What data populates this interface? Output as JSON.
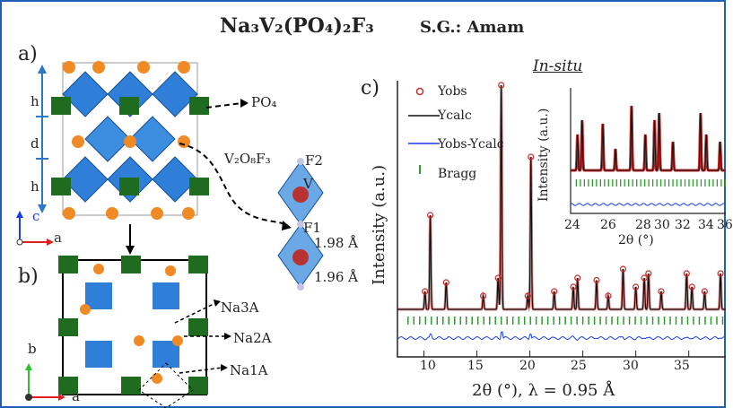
{
  "header": {
    "formula": "Na₃V₂(PO₄)₂F₃",
    "space_group": "S.G.: Amam"
  },
  "panel_a": {
    "label": "a)",
    "layer_labels": [
      "h",
      "d",
      "h"
    ],
    "po4_label": "PO₄",
    "v2o8f3_label": "V₂O₈F₃",
    "f2_label": "F2",
    "v_label": "V",
    "f1_label": "F1",
    "bond1": "1.98 Å",
    "bond2": "1.96 Å",
    "axis_c": "c",
    "axis_a": "a"
  },
  "panel_b": {
    "label": "b)",
    "na3": "Na3A",
    "na2": "Na2A",
    "na1": "Na1A",
    "axis_b": "b",
    "axis_a": "a"
  },
  "panel_c": {
    "label": "c)",
    "insitu": "In-situ",
    "legend": {
      "obs": "Yobs",
      "calc": "Ycalc",
      "diff": "Yobs-Ycalc",
      "bragg": "Bragg"
    },
    "ylabel": "Intensity (a.u.)",
    "xlabel": "2θ (°), λ = 0.95 Å",
    "xticks": [
      "10",
      "15",
      "20",
      "25",
      "30",
      "35"
    ],
    "inset_ylabel": "Intensity (a.u.)",
    "inset_xlabel": "2θ (°)",
    "inset_xticks": [
      "24",
      "26",
      "28",
      "30",
      "32",
      "34",
      "36"
    ]
  },
  "colors": {
    "frame": "#1f5fb4",
    "observed": "#c62828",
    "calculated": "#111111",
    "difference": "#1a3cf0",
    "bragg": "#2e9b2e",
    "octahedron": "#2f7fd8",
    "tetrahedron": "#1f6b1f",
    "sodium": "#f08a24"
  },
  "chart_data": {
    "type": "line",
    "xlabel": "2θ (°), λ = 0.95 Å",
    "ylabel": "Intensity (a.u.)",
    "xlim": [
      7.5,
      38.5
    ],
    "series": [
      {
        "name": "Yobs"
      },
      {
        "name": "Ycalc"
      },
      {
        "name": "Yobs-Ycalc"
      },
      {
        "name": "Bragg"
      }
    ],
    "peaks_2theta": [
      10.1,
      10.6,
      12.1,
      15.6,
      17.0,
      17.3,
      19.8,
      20.1,
      22.3,
      24.1,
      24.5,
      26.3,
      27.4,
      28.8,
      30.0,
      30.8,
      31.2,
      32.4,
      34.8,
      35.3,
      36.5,
      38.0
    ],
    "peak_heights_rel": [
      0.08,
      0.42,
      0.12,
      0.06,
      0.14,
      1.0,
      0.06,
      0.68,
      0.08,
      0.1,
      0.14,
      0.13,
      0.06,
      0.18,
      0.1,
      0.14,
      0.16,
      0.08,
      0.16,
      0.1,
      0.08,
      0.16
    ]
  }
}
